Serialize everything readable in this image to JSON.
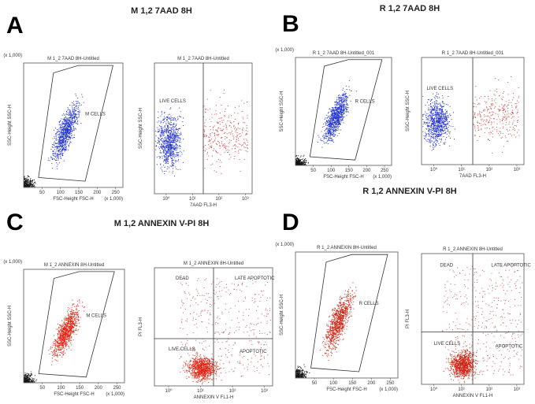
{
  "panels": [
    {
      "letter": "A",
      "title": "M 1,2 7AAD 8H",
      "plots": [
        {
          "title": "M 1_2 7AAD 8H-Untitled",
          "y_label": "SSC-Height SSC-H",
          "x_label": "FSC-Height FSC-H",
          "y_scale_note": "(x 1,000)",
          "x_scale_note": "(x 1,000)",
          "x_ticks": [
            50,
            100,
            150,
            200,
            250
          ],
          "gates": [
            "M CELLS"
          ]
        },
        {
          "title": "M 1_2 7AAD 8H-Untitled",
          "y_label": "SSC-Height SSC-H",
          "x_label": "7AAD FL3-H",
          "x_ticks": [
            "10⁰",
            "10¹",
            "10²",
            "10³"
          ],
          "gates": [
            "LIVE CELLS"
          ]
        }
      ]
    },
    {
      "letter": "B",
      "title": "R 1,2 7AAD 8H",
      "plots": [
        {
          "title": "R 1_2 7AAD 8H-Untitled_001",
          "y_label": "SSC-Height SSC-H",
          "x_label": "FSC-Height FSC-H",
          "y_scale_note": "(x 1,000)",
          "x_scale_note": "(x 1,000)",
          "x_ticks": [
            50,
            100,
            150,
            200,
            250
          ],
          "gates": [
            "R CELLS"
          ]
        },
        {
          "title": "R 1_2 7AAD 8H-Untitled_001",
          "y_label": "SSC-Height SSC-H",
          "x_label": "7AAD FL3-H",
          "x_ticks": [
            "10⁰",
            "10¹",
            "10²",
            "10³"
          ],
          "gates": [
            "LIVE CELLS"
          ]
        }
      ]
    },
    {
      "letter": "C",
      "title": "M 1,2 ANNEXIN V-PI 8H",
      "plots": [
        {
          "title": "M 1_2 ANNEXIN 8H-Untitled",
          "y_label": "SSC-Height SSC-H",
          "x_label": "FSC-Height FSC-H",
          "y_scale_note": "(x 1,000)",
          "x_scale_note": "(x 1,000)",
          "x_ticks": [
            50,
            100,
            150,
            200,
            250
          ],
          "gates": [
            "M CELLS"
          ]
        },
        {
          "title": "M 1_2 ANNEXIN 8H-Untitled",
          "y_label": "PI FL3-H",
          "x_label": "ANNEXIN V FL1-H",
          "x_ticks": [
            "10⁰",
            "10¹",
            "10²",
            "10³"
          ],
          "gates": [
            "DEAD",
            "LATE APOPTOTIC",
            "LIVE CELLS",
            "APOPTOTIC"
          ]
        }
      ]
    },
    {
      "letter": "D",
      "title": "R 1,2 ANNEXIN V-PI 8H",
      "plots": [
        {
          "title": "R 1_2 ANNEXIN 8H-Untitled",
          "y_label": "SSC-Height SSC-H",
          "x_label": "FSC-Height FSC-H",
          "y_scale_note": "(x 1,000)",
          "x_scale_note": "(x 1,000)",
          "x_ticks": [
            50,
            100,
            150,
            200,
            250
          ],
          "gates": [
            "R CELLS"
          ]
        },
        {
          "title": "R 1_2 ANNEXIN 8H-Untitled",
          "y_label": "PI FL3-H",
          "x_label": "ANNEXIN V FL1-H",
          "x_ticks": [
            "10⁰",
            "10¹",
            "10²",
            "10³"
          ],
          "gates": [
            "DEAD",
            "LATE APOPTOTIC",
            "LIVE CELLS",
            "APOPTOTIC"
          ]
        }
      ]
    }
  ]
}
